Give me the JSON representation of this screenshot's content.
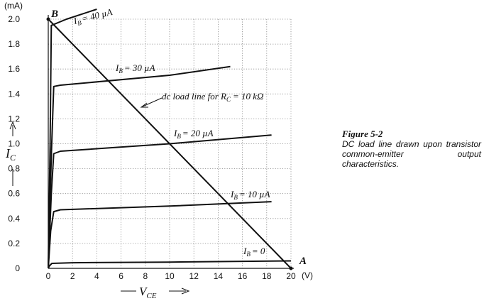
{
  "chart_data": {
    "type": "line",
    "y_unit_label": "(mA)",
    "x_unit_label": "(V)",
    "ylabel_main": "I",
    "ylabel_sub": "C",
    "xlabel_main": "V",
    "xlabel_sub": "CE",
    "xlim": [
      0,
      20
    ],
    "ylim": [
      0,
      2.0
    ],
    "x_ticks": [
      0,
      2,
      4,
      6,
      8,
      10,
      12,
      14,
      16,
      18,
      20
    ],
    "y_ticks": [
      0,
      0.2,
      0.4,
      0.6,
      0.8,
      1.0,
      1.2,
      1.4,
      1.6,
      1.8,
      2.0
    ],
    "x_tick_labels": [
      "0",
      "2",
      "4",
      "6",
      "8",
      "10",
      "12",
      "14",
      "16",
      "18",
      "20"
    ],
    "y_tick_labels": [
      "0",
      "0.2",
      "0.4",
      "0.6",
      "0.8",
      "1.0",
      "1.2",
      "1.4",
      "1.6",
      "1.8",
      "2.0"
    ],
    "grid": true,
    "series": [
      {
        "name": "I_B = 0",
        "points": [
          [
            0,
            0
          ],
          [
            0.1,
            0.02
          ],
          [
            0.3,
            0.04
          ],
          [
            2,
            0.045
          ],
          [
            10,
            0.05
          ],
          [
            20,
            0.06
          ]
        ]
      },
      {
        "name": "I_B = 10 µA",
        "points": [
          [
            0,
            0
          ],
          [
            0.2,
            0.3
          ],
          [
            0.45,
            0.455
          ],
          [
            1,
            0.47
          ],
          [
            10,
            0.5
          ],
          [
            18.4,
            0.535
          ]
        ]
      },
      {
        "name": "I_B = 20 µA",
        "points": [
          [
            0,
            0
          ],
          [
            0.25,
            0.6
          ],
          [
            0.45,
            0.92
          ],
          [
            1,
            0.94
          ],
          [
            10,
            1.0
          ],
          [
            18.4,
            1.07
          ]
        ]
      },
      {
        "name": "I_B = 30 µA",
        "points": [
          [
            0,
            0
          ],
          [
            0.25,
            0.9
          ],
          [
            0.45,
            1.46
          ],
          [
            1,
            1.47
          ],
          [
            10,
            1.55
          ],
          [
            15,
            1.62
          ]
        ]
      },
      {
        "name": "I_B = 40 µA",
        "points": [
          [
            0,
            0
          ],
          [
            0.15,
            1.0
          ],
          [
            0.25,
            1.95
          ],
          [
            1.5,
            2.0
          ],
          [
            4,
            2.08
          ]
        ]
      }
    ],
    "load_line": {
      "label_prefix": "dc load line for",
      "label_rc": "R",
      "label_rc_sub": "C",
      "label_rc_value": "= 10 kΩ",
      "points": [
        [
          0,
          2.0
        ],
        [
          20,
          0
        ]
      ]
    },
    "annotations": {
      "point_b": "B",
      "point_a": "A",
      "ib_prefix": "I",
      "ib_sub": "B",
      "ib_values": [
        "= 0",
        "= 10 µA",
        "= 20 µA",
        "= 30 µA",
        "= 40 µA"
      ]
    }
  },
  "caption": {
    "figure": "Figure 5-2",
    "text": "DC load line drawn upon transistor common-emitter output characteristics."
  }
}
